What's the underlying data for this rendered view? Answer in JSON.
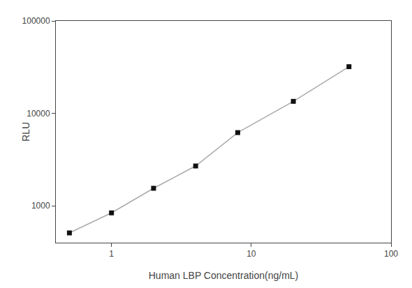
{
  "chart_data": {
    "type": "line",
    "x": [
      0.5,
      1.0,
      2.0,
      4.0,
      8.0,
      20.0,
      50.0
    ],
    "series": [
      {
        "type": "line",
        "color": "#aaaaaa",
        "values": [
          510,
          840,
          1550,
          2700,
          6200,
          13500,
          32000
        ]
      },
      {
        "type": "scatter",
        "color": "#111111",
        "marker": "square",
        "values": [
          510,
          840,
          1550,
          2700,
          6200,
          13500,
          32000
        ]
      }
    ],
    "x_label": "Human LBP Concentration(ng/mL)",
    "y_label": "RLU",
    "log": true,
    "xlim": [
      0.4,
      100
    ],
    "ylim": [
      400,
      100000
    ],
    "xticks": [
      1,
      10,
      100
    ],
    "yticks": [
      1000,
      10000,
      100000
    ],
    "grid": false
  }
}
